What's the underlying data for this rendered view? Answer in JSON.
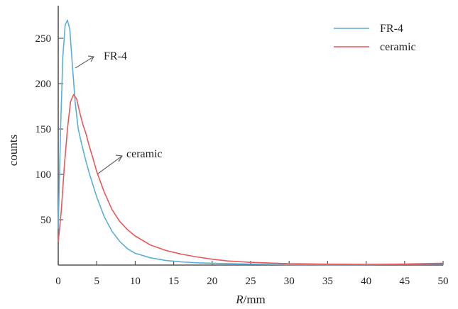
{
  "chart_data": {
    "type": "line",
    "title": "",
    "xlabel_italic": "R",
    "xlabel_rest": "/mm",
    "ylabel": "counts",
    "xlim": [
      0,
      50
    ],
    "ylim": [
      0,
      275
    ],
    "xticks": [
      0,
      5,
      10,
      15,
      20,
      25,
      30,
      35,
      40,
      45,
      50
    ],
    "yticks": [
      50,
      100,
      150,
      200,
      250
    ],
    "grid": false,
    "legend_position": "top-right",
    "series": [
      {
        "name": "FR-4",
        "color": "#5aaed8",
        "x": [
          0,
          0.3,
          0.6,
          0.9,
          1.2,
          1.5,
          1.8,
          2.2,
          2.6,
          3,
          3.5,
          4,
          5,
          6,
          7,
          8,
          9,
          10,
          12,
          14,
          16,
          18,
          20,
          25,
          30,
          35,
          40,
          45,
          50
        ],
        "y": [
          40,
          150,
          230,
          265,
          270,
          260,
          225,
          180,
          150,
          135,
          118,
          102,
          75,
          53,
          37,
          26,
          18,
          13,
          8,
          5,
          3.5,
          2.5,
          2,
          1,
          0.5,
          0.3,
          0.5,
          0.8,
          1
        ]
      },
      {
        "name": "ceramic",
        "color": "#e8585a",
        "x": [
          0,
          0.4,
          0.8,
          1.2,
          1.6,
          2,
          2.4,
          2.8,
          3.2,
          3.6,
          4,
          4.5,
          5,
          6,
          7,
          8,
          9,
          10,
          12,
          14,
          16,
          18,
          20,
          22,
          25,
          30,
          35,
          40,
          45,
          50
        ],
        "y": [
          25,
          60,
          110,
          150,
          180,
          188,
          183,
          168,
          155,
          145,
          132,
          118,
          103,
          80,
          61,
          48,
          39,
          32,
          22,
          16,
          12,
          9,
          6.5,
          4.5,
          3,
          1.5,
          1,
          0.8,
          1.2,
          2
        ]
      }
    ],
    "annotations": [
      {
        "text": "FR-4",
        "points_to": {
          "x": 2.2,
          "y": 215
        }
      },
      {
        "text": "ceramic",
        "points_to": {
          "x": 5.2,
          "y": 98
        }
      }
    ]
  }
}
